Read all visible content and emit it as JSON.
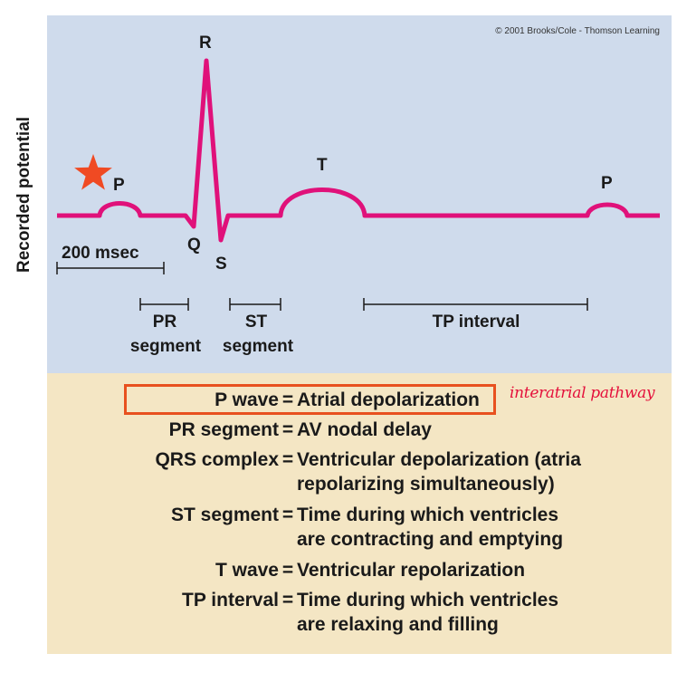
{
  "credit": "© 2001 Brooks/Cole - Thomson Learning",
  "y_axis_label": "Recorded potential",
  "waves": {
    "p1": "P",
    "q": "Q",
    "r": "R",
    "s": "S",
    "t": "T",
    "p2": "P"
  },
  "scale_bar_label": "200 msec",
  "intervals": {
    "pr_line1": "PR",
    "pr_line2": "segment",
    "st_line1": "ST",
    "st_line2": "segment",
    "tp": "TP interval"
  },
  "definitions": [
    {
      "term": "P wave",
      "eq": "=",
      "desc": "Atrial depolarization",
      "desc2": ""
    },
    {
      "term": "PR segment",
      "eq": "=",
      "desc": "AV nodal delay",
      "desc2": ""
    },
    {
      "term": "QRS complex",
      "eq": "=",
      "desc": "Ventricular depolarization (atria",
      "desc2": "repolarizing simultaneously)"
    },
    {
      "term": "ST segment",
      "eq": "=",
      "desc": "Time during which ventricles",
      "desc2": "are contracting and emptying"
    },
    {
      "term": "T wave",
      "eq": "=",
      "desc": "Ventricular repolarization",
      "desc2": ""
    },
    {
      "term": "TP interval",
      "eq": "=",
      "desc": "Time during which ventricles",
      "desc2": "are relaxing and filling"
    }
  ],
  "handwritten_note": "interatrial pathway",
  "colors": {
    "top_panel": "#cfdbec",
    "bottom_panel": "#f4e6c4",
    "trace": "#e0117a",
    "star": "#f04a23",
    "highlight_box": "#e8511f",
    "note": "#e4103b"
  }
}
